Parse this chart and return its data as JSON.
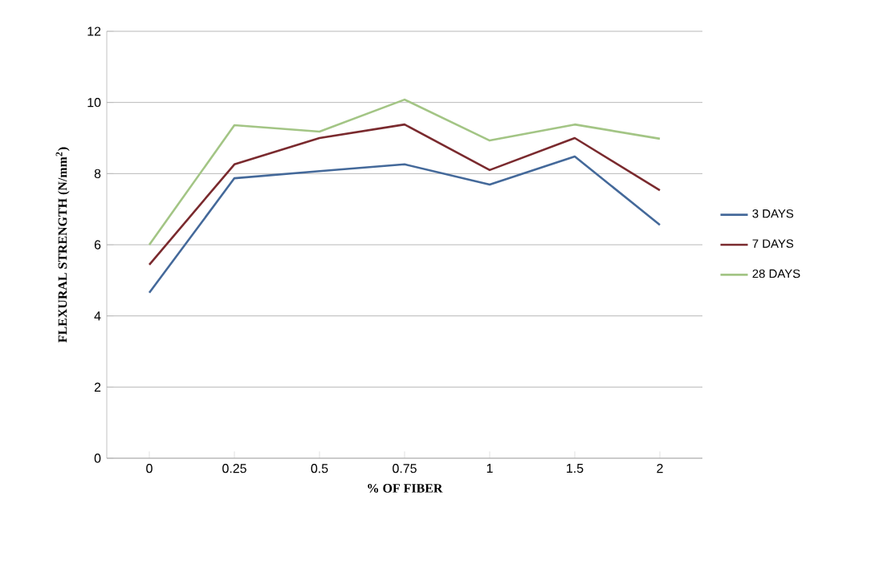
{
  "chart_data": {
    "type": "line",
    "xlabel": "% OF FIBER",
    "ylabel": "FLEXURAL STRENGTH (N/mm$^{2}$)",
    "categories": [
      "0",
      "0.25",
      "0.5",
      "0.75",
      "1",
      "1.5",
      "2"
    ],
    "series": [
      {
        "name": "3 DAYS",
        "color": "#44699a",
        "values": [
          4.65,
          7.87,
          8.07,
          8.26,
          7.69,
          8.48,
          6.56
        ]
      },
      {
        "name": "7 DAYS",
        "color": "#7a2a2e",
        "values": [
          5.44,
          8.26,
          9.0,
          9.38,
          8.1,
          9.0,
          7.53
        ]
      },
      {
        "name": "28 DAYS",
        "color": "#a3c585",
        "values": [
          6.0,
          9.36,
          9.18,
          10.08,
          8.93,
          9.38,
          8.98
        ]
      }
    ],
    "ylim": [
      0,
      12
    ],
    "yticks": [
      0,
      2,
      4,
      6,
      8,
      10,
      12
    ],
    "grid": "y",
    "legend": "right",
    "marker": "none",
    "line_style": "solid"
  }
}
